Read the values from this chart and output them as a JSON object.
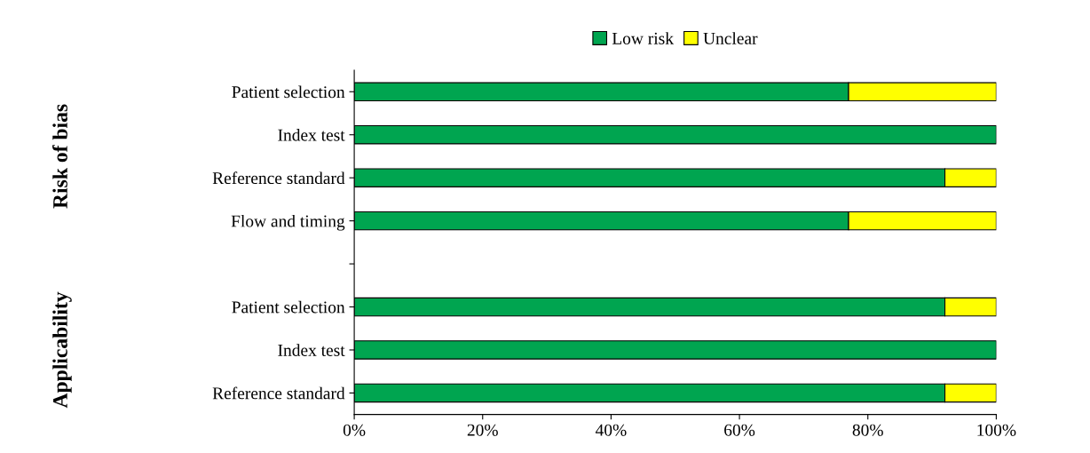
{
  "chart_data": {
    "type": "bar",
    "orientation": "horizontal",
    "stacked": true,
    "categories": [
      "Patient selection",
      "Index test",
      "Reference standard",
      "Flow and timing",
      null,
      "Patient selection",
      "Index test",
      "Reference standard"
    ],
    "series": [
      {
        "name": "Low risk",
        "color": "#00a550",
        "values": [
          77,
          100,
          92,
          77,
          null,
          92,
          100,
          92
        ]
      },
      {
        "name": "Unclear",
        "color": "#ffff00",
        "values": [
          23,
          0,
          8,
          23,
          null,
          8,
          0,
          8
        ]
      }
    ],
    "xlim": [
      0,
      100
    ],
    "xticks": [
      {
        "value": 0,
        "label": "0%"
      },
      {
        "value": 20,
        "label": "20%"
      },
      {
        "value": 40,
        "label": "40%"
      },
      {
        "value": 60,
        "label": "60%"
      },
      {
        "value": 80,
        "label": "80%"
      },
      {
        "value": 100,
        "label": "100%"
      }
    ],
    "annotations": [
      "Risk of bias",
      "Applicability"
    ],
    "legend": "top",
    "grid": false
  }
}
